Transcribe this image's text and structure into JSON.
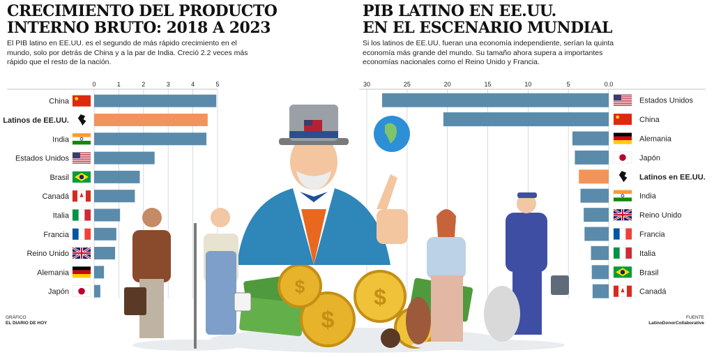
{
  "left": {
    "title_line1": "CRECIMIENTO DEL PRODUCTO",
    "title_line2": "INTERNO BRUTO: 2018 A 2023",
    "subtitle_line1": "El PIB latino en EE.UU. es el segundo de más rápido crecimiento en el",
    "subtitle_line2": "mundo, solo por detrás de China y a la par de India. Creció 2.2 veces más",
    "subtitle_line3": "rápido que el resto de la nación.",
    "credit_label": "GRÁFICO",
    "credit_value": "EL DIARIO DE HOY"
  },
  "right": {
    "title_line1": "PIB LATINO EN EE.UU.",
    "title_line2": "EN EL ESCENARIO MUNDIAL",
    "subtitle_line1": "Si los latinos de EE.UU. fueran una economía independiente, serían la quinta",
    "subtitle_line2": "economía más grande del mundo. Su tamaño ahora supera a importantes",
    "subtitle_line3": "economías nacionales como el Reino Unido y Francia.",
    "source_label": "FUENTE",
    "source_value": "LatinoDonorCollaborative"
  },
  "colors": {
    "bar": "#5b8bab",
    "highlight": "#f2945a",
    "grid": "#c9d3da"
  },
  "chart_data": [
    {
      "type": "bar",
      "orientation": "horizontal",
      "title": "CRECIMIENTO DEL PRODUCTO INTERNO BRUTO: 2018 A 2023",
      "xlim": [
        0,
        5
      ],
      "ticks": [
        "0",
        "1",
        "2",
        "3",
        "4",
        "5"
      ],
      "tick_values": [
        0,
        1,
        2,
        3,
        4,
        5
      ],
      "categories": [
        "China",
        "Latinos de EE.UU.",
        "India",
        "Estados Unidos",
        "Brasil",
        "Canadá",
        "Italia",
        "Francia",
        "Reino Unido",
        "Alemania",
        "Japón"
      ],
      "values": [
        4.95,
        4.6,
        4.55,
        2.45,
        1.85,
        1.65,
        1.05,
        0.9,
        0.85,
        0.4,
        0.25
      ],
      "flags": [
        "cn",
        "latam",
        "in",
        "us",
        "br",
        "ca",
        "it",
        "fr",
        "gb",
        "de",
        "jp"
      ],
      "highlight": "Latinos de EE.UU.",
      "grid": true
    },
    {
      "type": "bar",
      "orientation": "horizontal",
      "title": "PIB LATINO EN EE.UU. EN EL ESCENARIO MUNDIAL",
      "xlim": [
        0,
        30
      ],
      "x_reversed": true,
      "ticks": [
        "30",
        "25",
        "20",
        "15",
        "10",
        "5",
        "0.0"
      ],
      "tick_values": [
        30,
        25,
        20,
        15,
        10,
        5,
        0
      ],
      "categories": [
        "Estados Unidos",
        "China",
        "Alemania",
        "Japón",
        "Latinos en EE.UU.",
        "India",
        "Reino Unido",
        "Francia",
        "Italia",
        "Brasil",
        "Canadá"
      ],
      "values": [
        30.5,
        20.5,
        4.5,
        4.2,
        3.7,
        3.5,
        3.1,
        3.0,
        2.2,
        2.1,
        2.0
      ],
      "flags": [
        "us",
        "cn",
        "de",
        "jp",
        "latam",
        "in",
        "gb",
        "fr",
        "it",
        "br",
        "ca"
      ],
      "highlight": "Latinos en EE.UU.",
      "grid": true
    }
  ]
}
